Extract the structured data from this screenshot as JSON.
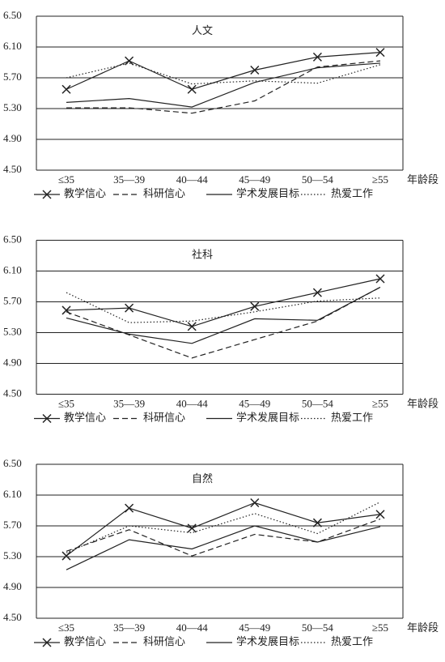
{
  "chart_data": [
    {
      "type": "line",
      "title": "人文",
      "x_label": "年龄段",
      "categories": [
        "≤35",
        "35—39",
        "40—44",
        "45—49",
        "50—54",
        "≥55"
      ],
      "ylim": [
        4.5,
        6.5
      ],
      "yticks": [
        {
          "value": 4.5,
          "label": "4.50"
        },
        {
          "value": 4.9,
          "label": "4.90"
        },
        {
          "value": 5.3,
          "label": "5.30"
        },
        {
          "value": 5.7,
          "label": "5.70"
        },
        {
          "value": 6.1,
          "label": "6.10"
        },
        {
          "value": 6.5,
          "label": "6.50"
        }
      ],
      "grid": true,
      "series": [
        {
          "name": "教学信心",
          "color": "#222222",
          "line_style": "solid",
          "marker": "x",
          "values": [
            5.55,
            5.92,
            5.55,
            5.8,
            5.97,
            6.03
          ]
        },
        {
          "name": "科研信心",
          "color": "#222222",
          "line_style": "dashed",
          "values": [
            5.31,
            5.31,
            5.24,
            5.4,
            5.84,
            5.92
          ]
        },
        {
          "name": "学术发展目标",
          "color": "#222222",
          "line_style": "solid",
          "values": [
            5.38,
            5.43,
            5.32,
            5.64,
            5.83,
            5.89
          ]
        },
        {
          "name": "热爱工作",
          "color": "#222222",
          "line_style": "dotted",
          "values": [
            5.7,
            5.89,
            5.62,
            5.66,
            5.63,
            5.87
          ]
        }
      ]
    },
    {
      "type": "line",
      "title": "社科",
      "x_label": "年龄段",
      "categories": [
        "≤35",
        "35—39",
        "40—44",
        "45—49",
        "50—54",
        "≥55"
      ],
      "ylim": [
        4.5,
        6.5
      ],
      "yticks": [
        {
          "value": 4.5,
          "label": "4.50"
        },
        {
          "value": 4.9,
          "label": "4.90"
        },
        {
          "value": 5.3,
          "label": "5.30"
        },
        {
          "value": 5.7,
          "label": "5.70"
        },
        {
          "value": 6.1,
          "label": "6.10"
        },
        {
          "value": 6.5,
          "label": "6.50"
        }
      ],
      "grid": true,
      "series": [
        {
          "name": "教学信心",
          "color": "#222222",
          "line_style": "solid",
          "marker": "x",
          "values": [
            5.59,
            5.62,
            5.38,
            5.64,
            5.82,
            6.0
          ]
        },
        {
          "name": "科研信心",
          "color": "#222222",
          "line_style": "dashed",
          "values": [
            5.57,
            5.27,
            4.97,
            5.21,
            5.45,
            5.89
          ]
        },
        {
          "name": "学术发展目标",
          "color": "#222222",
          "line_style": "solid",
          "values": [
            5.49,
            5.28,
            5.16,
            5.48,
            5.46,
            5.89
          ]
        },
        {
          "name": "热爱工作",
          "color": "#222222",
          "line_style": "dotted",
          "values": [
            5.82,
            5.43,
            5.45,
            5.57,
            5.71,
            5.75
          ]
        }
      ]
    },
    {
      "type": "line",
      "title": "自然",
      "x_label": "年龄段",
      "categories": [
        "≤35",
        "35—39",
        "40—44",
        "45—49",
        "50—54",
        "≥55"
      ],
      "ylim": [
        4.5,
        6.5
      ],
      "yticks": [
        {
          "value": 4.5,
          "label": "4.50"
        },
        {
          "value": 4.9,
          "label": "4.90"
        },
        {
          "value": 5.3,
          "label": "5.30"
        },
        {
          "value": 5.7,
          "label": "5.70"
        },
        {
          "value": 6.1,
          "label": "6.10"
        },
        {
          "value": 6.5,
          "label": "6.50"
        }
      ],
      "grid": true,
      "series": [
        {
          "name": "教学信心",
          "color": "#222222",
          "line_style": "solid",
          "marker": "x",
          "values": [
            5.31,
            5.93,
            5.67,
            6.0,
            5.74,
            5.85
          ]
        },
        {
          "name": "科研信心",
          "color": "#222222",
          "line_style": "dashed",
          "values": [
            5.37,
            5.65,
            5.31,
            5.59,
            5.49,
            5.79
          ]
        },
        {
          "name": "学术发展目标",
          "color": "#222222",
          "line_style": "solid",
          "values": [
            5.13,
            5.52,
            5.4,
            5.7,
            5.49,
            5.69
          ]
        },
        {
          "name": "热爱工作",
          "color": "#222222",
          "line_style": "dotted",
          "values": [
            5.35,
            5.7,
            5.61,
            5.86,
            5.6,
            6.01
          ]
        }
      ]
    }
  ]
}
